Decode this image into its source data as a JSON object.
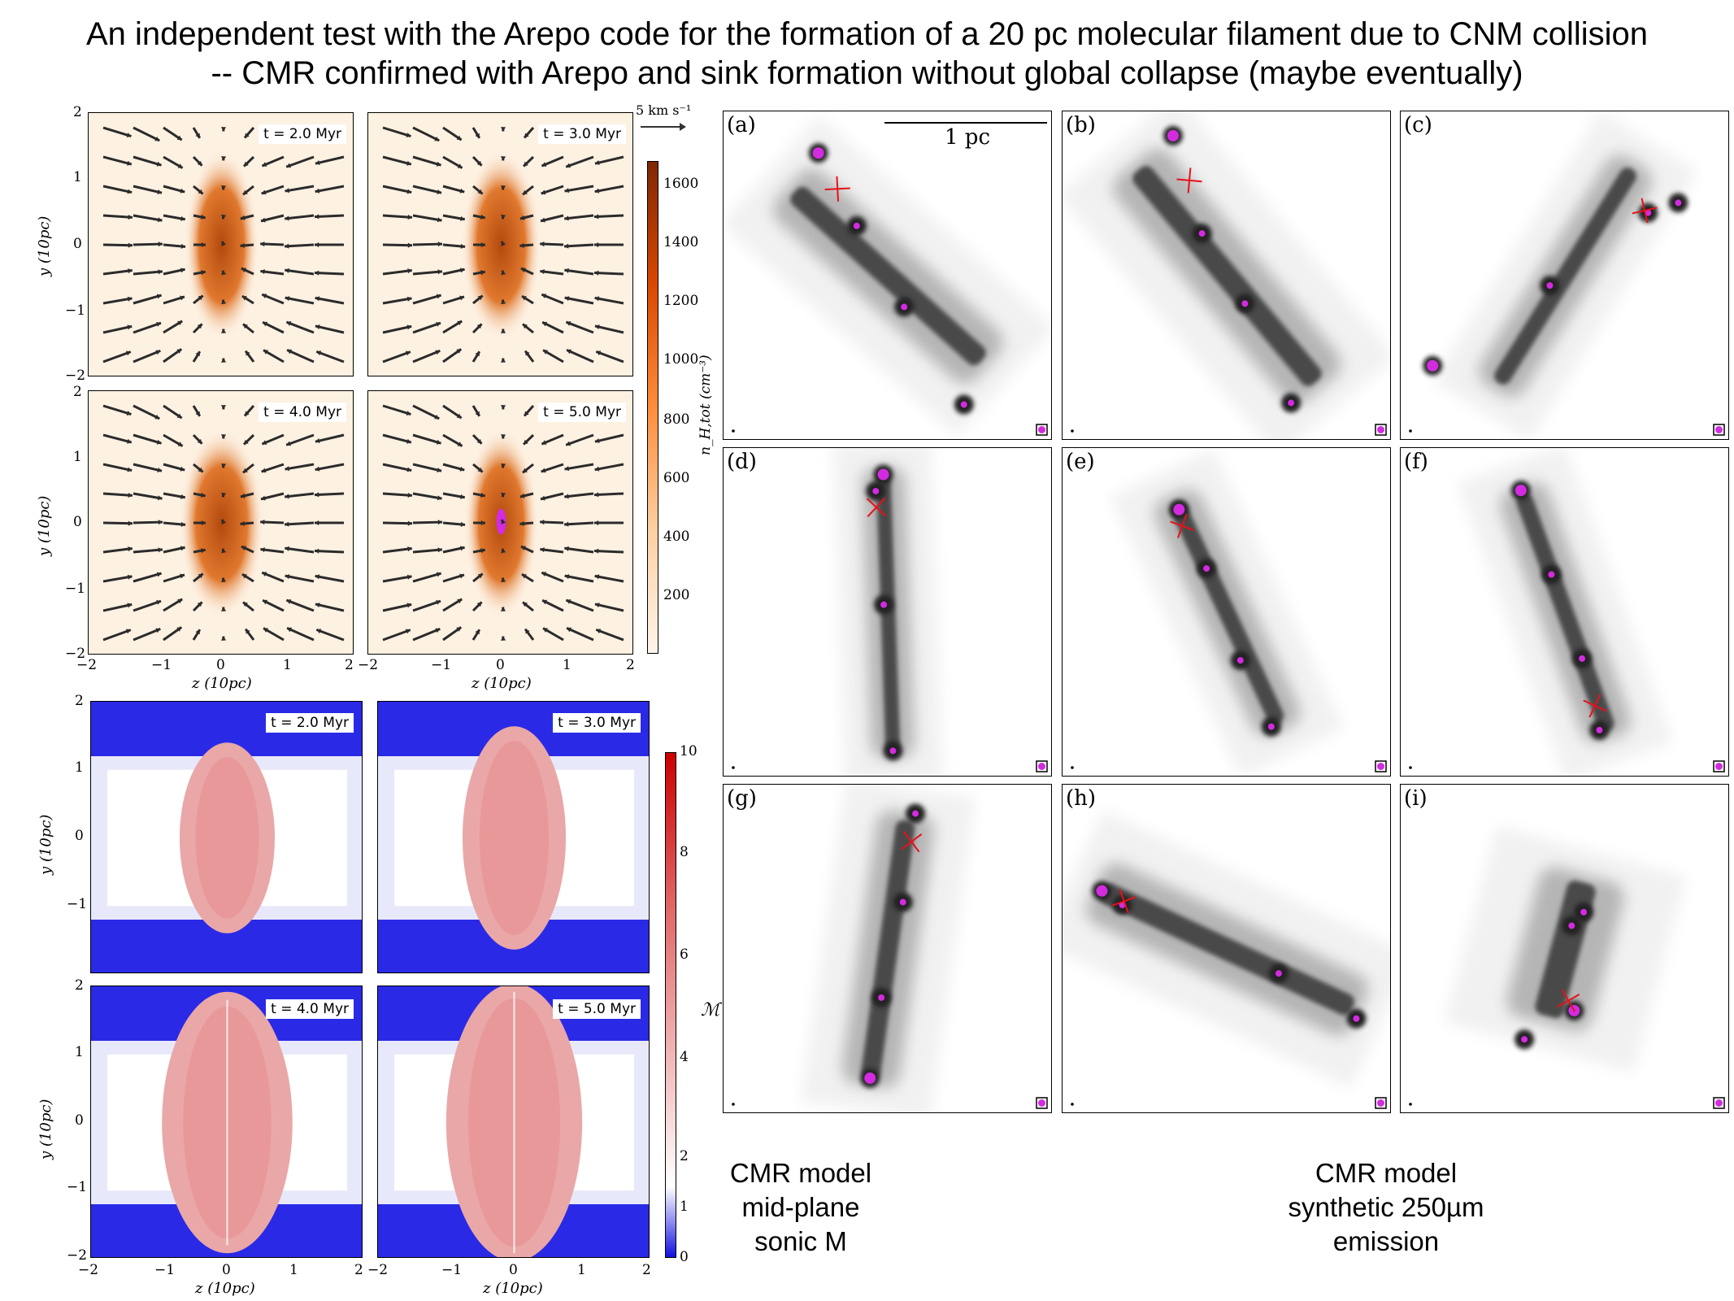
{
  "title": {
    "line1": "An independent test with the Arepo code for the formation of a 20 pc molecular filament due to CNM collision",
    "line2": "-- CMR confirmed with Arepo and sink formation without global collapse (maybe eventually)"
  },
  "density_panels": {
    "times": [
      "t = 2.0 Myr",
      "t = 3.0 Myr",
      "t = 4.0 Myr",
      "t = 5.0 Myr"
    ],
    "velocity_scale": "5 km s⁻¹",
    "y_label": "y (10pc)",
    "z_label": "z (10pc)",
    "y_ticks": [
      "2",
      "1",
      "0",
      "−1",
      "−2"
    ],
    "z_ticks": [
      "−2",
      "−1",
      "0",
      "1",
      "2"
    ],
    "colorbar_label": "n_H,tot (cm⁻³)",
    "colorbar_ticks": [
      "1600",
      "1400",
      "1200",
      "1000",
      "800",
      "600",
      "400",
      "200"
    ],
    "colors": {
      "low": "#fdf1e2",
      "high": "#7f2704"
    }
  },
  "mach_panels": {
    "times": [
      "t = 2.0 Myr",
      "t = 3.0 Myr",
      "t = 4.0 Myr",
      "t = 5.0 Myr"
    ],
    "y_label": "y (10pc)",
    "z_label": "z (10pc)",
    "y_ticks": [
      "2",
      "1",
      "0",
      "−1",
      "−2"
    ],
    "z_ticks": [
      "−2",
      "−1",
      "0",
      "1",
      "2"
    ],
    "colorbar_label": "ℳ",
    "colorbar_ticks": [
      "10",
      "8",
      "6",
      "4",
      "2",
      "1",
      "0"
    ],
    "colors": {
      "low": "#2020e0",
      "mid": "#ffffff",
      "high": "#d40000"
    }
  },
  "emission_panels": {
    "letters": [
      "(a)",
      "(b)",
      "(c)",
      "(d)",
      "(e)",
      "(f)",
      "(g)",
      "(h)",
      "(i)"
    ],
    "scale_bar": "1 pc",
    "sink_color": "#d22be0",
    "cross_color": "#e8101a"
  },
  "captions": {
    "left": [
      "CMR model",
      "mid-plane",
      "sonic M"
    ],
    "right": [
      "CMR model",
      "synthetic 250µm",
      "emission"
    ]
  }
}
